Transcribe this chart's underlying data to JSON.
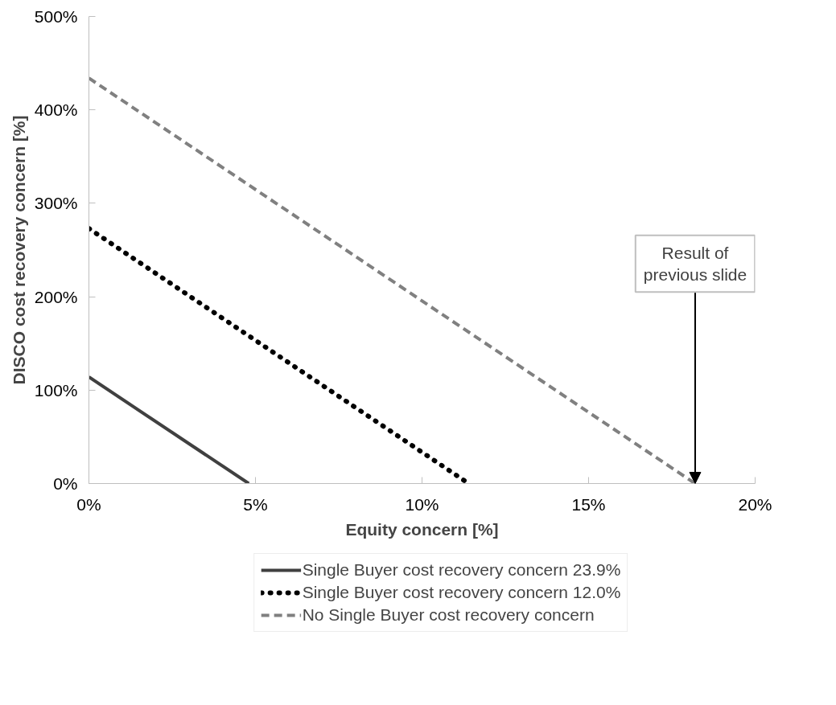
{
  "chart_data": {
    "type": "line",
    "xlabel": "Equity concern [%]",
    "ylabel": "DISCO cost recovery concern [%]",
    "series": [
      {
        "name": "Single Buyer cost recovery concern 23.9%",
        "color": "#404040",
        "line_style": "solid",
        "x": [
          0,
          4.8
        ],
        "values": [
          114,
          0
        ]
      },
      {
        "name": "Single Buyer cost recovery concern 12.0%",
        "color": "#000000",
        "line_style": "dotted",
        "x": [
          0,
          11.4
        ],
        "values": [
          273,
          0
        ]
      },
      {
        "name": "No Single Buyer cost recovery concern",
        "color": "#808080",
        "line_style": "dashed",
        "x": [
          0,
          18.2
        ],
        "values": [
          434,
          0
        ]
      }
    ],
    "xlim": [
      0,
      20
    ],
    "ylim": [
      0,
      500
    ],
    "xticks": [
      {
        "value": 0,
        "label": "0%"
      },
      {
        "value": 5,
        "label": "5%"
      },
      {
        "value": 10,
        "label": "10%"
      },
      {
        "value": 15,
        "label": "15%"
      },
      {
        "value": 20,
        "label": "20%"
      }
    ],
    "yticks": [
      {
        "value": 0,
        "label": "0%"
      },
      {
        "value": 100,
        "label": "100%"
      },
      {
        "value": 200,
        "label": "200%"
      },
      {
        "value": 300,
        "label": "300%"
      },
      {
        "value": 400,
        "label": "400%"
      },
      {
        "value": 500,
        "label": "500%"
      }
    ],
    "annotations": [
      {
        "text": "Result of previous slide",
        "x": 18.2,
        "y": 0
      }
    ],
    "grid": false,
    "legend": "bottom",
    "marker": "none"
  }
}
